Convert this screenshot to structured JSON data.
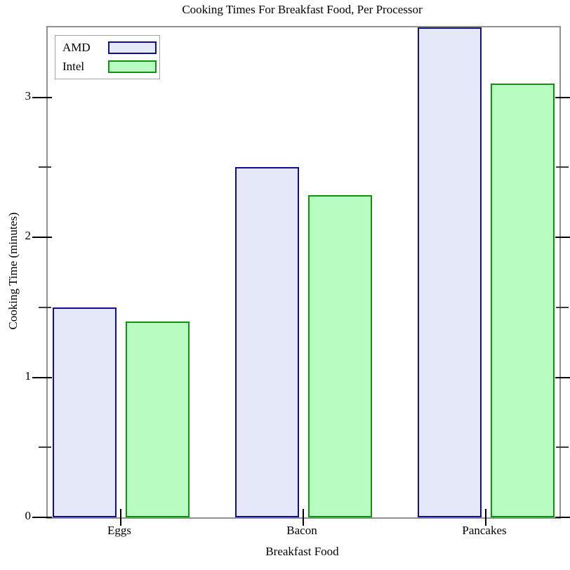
{
  "chart_data": {
    "type": "bar",
    "title": "Cooking Times For Breakfast Food, Per Processor",
    "xlabel": "Breakfast Food",
    "ylabel": "Cooking Time (minutes)",
    "categories": [
      "Eggs",
      "Bacon",
      "Pancakes"
    ],
    "series": [
      {
        "name": "AMD",
        "values": [
          1.5,
          2.5,
          3.5
        ],
        "fill_color": "#e4e8f8",
        "border_color": "#10108f"
      },
      {
        "name": "Intel",
        "values": [
          1.4,
          2.3,
          3.1
        ],
        "fill_color": "#b8fcc2",
        "border_color": "#0e930e"
      }
    ],
    "ylim": [
      0,
      3.5
    ],
    "yticks_major": [
      0,
      1,
      2,
      3
    ],
    "yticks_minor": [
      0.5,
      1.5,
      2.5
    ],
    "legend_position": "top-left",
    "grid": false,
    "axis_color": "#919191",
    "tick_color": "#000000"
  }
}
